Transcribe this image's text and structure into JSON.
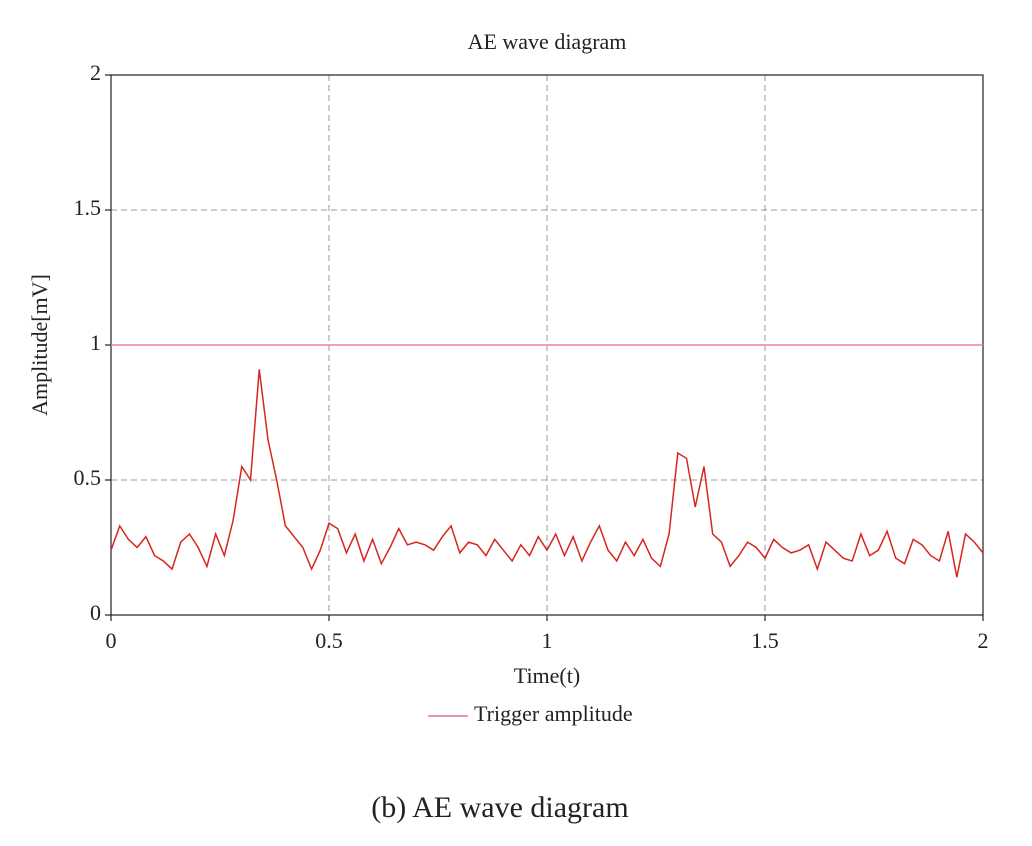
{
  "chart_data": {
    "type": "line",
    "title": "AE wave diagram",
    "xlabel": "Time(t)",
    "ylabel": "Amplitude[mV]",
    "xlim": [
      0,
      2
    ],
    "ylim": [
      0,
      2
    ],
    "xticks": [
      0,
      0.5,
      1,
      1.5,
      2
    ],
    "yticks": [
      0,
      0.5,
      1,
      1.5,
      2
    ],
    "grid": true,
    "legend": "bottom",
    "series": [
      {
        "color": "#d7261e",
        "x": [
          0,
          0.02,
          0.04,
          0.06,
          0.08,
          0.1,
          0.12,
          0.14,
          0.16,
          0.18,
          0.2,
          0.22,
          0.24,
          0.26,
          0.28,
          0.3,
          0.32,
          0.34,
          0.36,
          0.38,
          0.4,
          0.42,
          0.44,
          0.46,
          0.48,
          0.5,
          0.52,
          0.54,
          0.56,
          0.58,
          0.6,
          0.62,
          0.64,
          0.66,
          0.68,
          0.7,
          0.72,
          0.74,
          0.76,
          0.78,
          0.8,
          0.82,
          0.84,
          0.86,
          0.88,
          0.9,
          0.92,
          0.94,
          0.96,
          0.98,
          1,
          1.02,
          1.04,
          1.06,
          1.08,
          1.1,
          1.12,
          1.14,
          1.16,
          1.18,
          1.2,
          1.22,
          1.24,
          1.26,
          1.28,
          1.3,
          1.32,
          1.34,
          1.36,
          1.38,
          1.4,
          1.42,
          1.44,
          1.46,
          1.48,
          1.5,
          1.52,
          1.54,
          1.56,
          1.58,
          1.6,
          1.62,
          1.64,
          1.66,
          1.68,
          1.7,
          1.72,
          1.74,
          1.76,
          1.78,
          1.8,
          1.82,
          1.84,
          1.86,
          1.88,
          1.9,
          1.92,
          1.94,
          1.96,
          1.98,
          2
        ],
        "values": [
          0.24,
          0.33,
          0.28,
          0.25,
          0.29,
          0.22,
          0.2,
          0.17,
          0.27,
          0.3,
          0.25,
          0.18,
          0.3,
          0.22,
          0.35,
          0.55,
          0.5,
          0.91,
          0.65,
          0.5,
          0.33,
          0.29,
          0.25,
          0.17,
          0.24,
          0.34,
          0.32,
          0.23,
          0.3,
          0.2,
          0.28,
          0.19,
          0.25,
          0.32,
          0.26,
          0.27,
          0.26,
          0.24,
          0.29,
          0.33,
          0.23,
          0.27,
          0.26,
          0.22,
          0.28,
          0.24,
          0.2,
          0.26,
          0.22,
          0.29,
          0.24,
          0.3,
          0.22,
          0.29,
          0.2,
          0.27,
          0.33,
          0.24,
          0.2,
          0.27,
          0.22,
          0.28,
          0.21,
          0.18,
          0.3,
          0.6,
          0.58,
          0.4,
          0.55,
          0.3,
          0.27,
          0.18,
          0.22,
          0.27,
          0.25,
          0.21,
          0.28,
          0.25,
          0.23,
          0.24,
          0.26,
          0.17,
          0.27,
          0.24,
          0.21,
          0.2,
          0.3,
          0.22,
          0.24,
          0.31,
          0.21,
          0.19,
          0.28,
          0.26,
          0.22,
          0.2,
          0.31,
          0.14,
          0.3,
          0.27,
          0.23
        ]
      },
      {
        "name": "Trigger amplitude",
        "color": "#e87fb4",
        "x": [
          0,
          2
        ],
        "values": [
          1,
          1
        ]
      }
    ],
    "caption": "(b) AE wave diagram"
  }
}
